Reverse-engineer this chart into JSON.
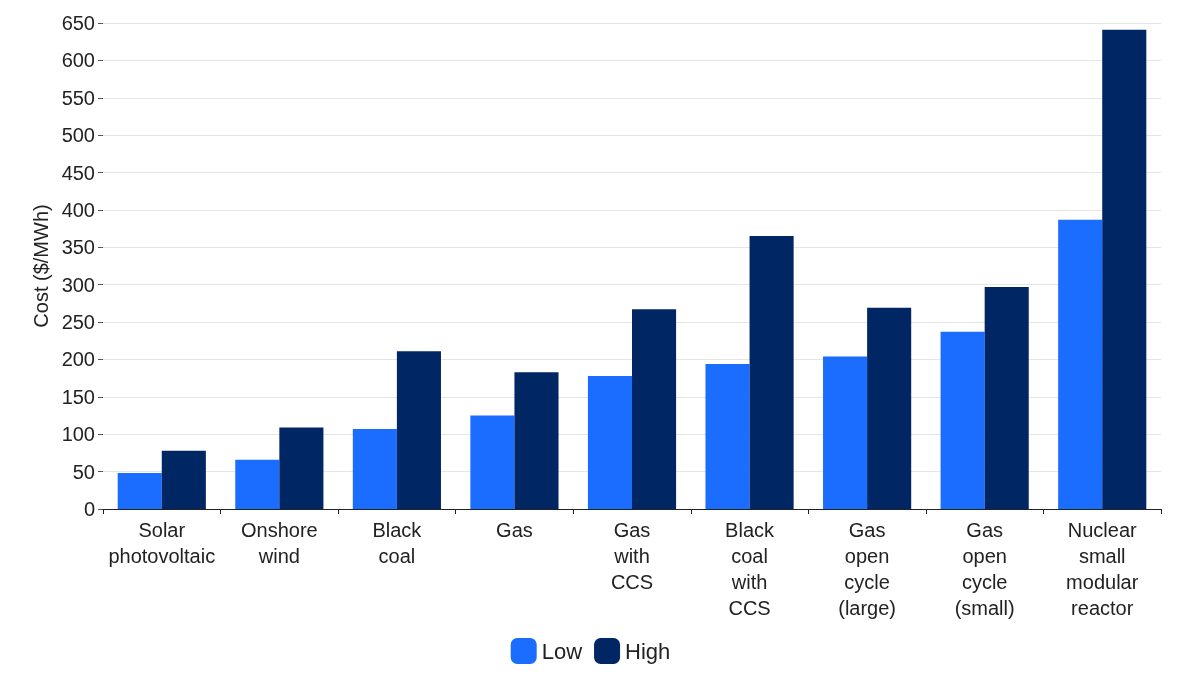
{
  "chart_data": {
    "type": "bar",
    "ylabel": "Cost ($/MWh)",
    "categories": [
      "Solar\nphotovoltaic",
      "Onshore\nwind",
      "Black\ncoal",
      "Gas",
      "Gas\nwith\nCCS",
      "Black\ncoal\nwith\nCCS",
      "Gas\nopen\ncycle\n(large)",
      "Gas\nopen\ncycle\n(small)",
      "Nuclear\nsmall\nmodular\nreactor"
    ],
    "series": [
      {
        "name": "Low",
        "color": "#1a6dff",
        "values": [
          48,
          66,
          107,
          125,
          178,
          194,
          204,
          237,
          387
        ]
      },
      {
        "name": "High",
        "color": "#002664",
        "values": [
          78,
          109,
          211,
          183,
          267,
          365,
          269,
          297,
          641
        ]
      }
    ],
    "ylim": [
      0,
      650
    ],
    "yticks": [
      0,
      50,
      100,
      150,
      200,
      250,
      300,
      350,
      400,
      450,
      500,
      550,
      600,
      650
    ],
    "grid": "y",
    "legend": "bottom"
  }
}
